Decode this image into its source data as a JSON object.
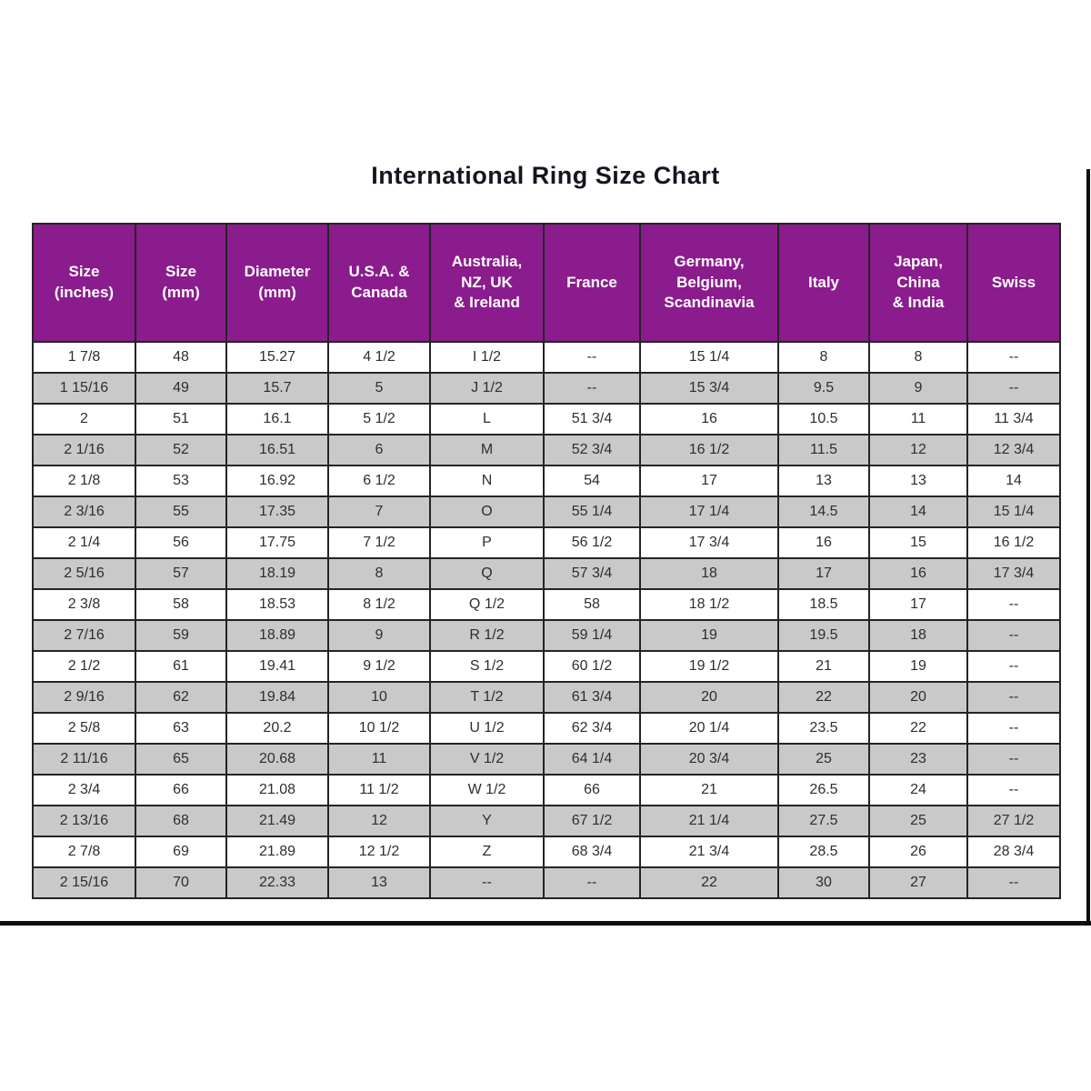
{
  "page": {
    "title": "International Ring Size Chart"
  },
  "colors": {
    "header_bg": "#8b1c8d",
    "header_text": "#ffffff",
    "row_bg": "#ffffff",
    "row_alt_bg": "#c9c9c9",
    "grid_line": "#242424",
    "title_text": "#15151f",
    "frame_rule": "#0e0e0e"
  },
  "table": {
    "columns": [
      "Size\n(inches)",
      "Size\n(mm)",
      "Diameter\n(mm)",
      "U.S.A. &\nCanada",
      "Australia,\nNZ, UK\n& Ireland",
      "France",
      "Germany,\nBelgium,\nScandinavia",
      "Italy",
      "Japan,\nChina\n& India",
      "Swiss"
    ],
    "rows": [
      [
        "1 7/8",
        "48",
        "15.27",
        "4 1/2",
        "I 1/2",
        "--",
        "15 1/4",
        "8",
        "8",
        "--"
      ],
      [
        "1 15/16",
        "49",
        "15.7",
        "5",
        "J 1/2",
        "--",
        "15 3/4",
        "9.5",
        "9",
        "--"
      ],
      [
        "2",
        "51",
        "16.1",
        "5 1/2",
        "L",
        "51 3/4",
        "16",
        "10.5",
        "11",
        "11 3/4"
      ],
      [
        "2 1/16",
        "52",
        "16.51",
        "6",
        "M",
        "52 3/4",
        "16 1/2",
        "11.5",
        "12",
        "12 3/4"
      ],
      [
        "2 1/8",
        "53",
        "16.92",
        "6 1/2",
        "N",
        "54",
        "17",
        "13",
        "13",
        "14"
      ],
      [
        "2 3/16",
        "55",
        "17.35",
        "7",
        "O",
        "55 1/4",
        "17 1/4",
        "14.5",
        "14",
        "15 1/4"
      ],
      [
        "2 1/4",
        "56",
        "17.75",
        "7 1/2",
        "P",
        "56 1/2",
        "17 3/4",
        "16",
        "15",
        "16 1/2"
      ],
      [
        "2 5/16",
        "57",
        "18.19",
        "8",
        "Q",
        "57 3/4",
        "18",
        "17",
        "16",
        "17 3/4"
      ],
      [
        "2 3/8",
        "58",
        "18.53",
        "8 1/2",
        "Q 1/2",
        "58",
        "18 1/2",
        "18.5",
        "17",
        "--"
      ],
      [
        "2 7/16",
        "59",
        "18.89",
        "9",
        "R 1/2",
        "59 1/4",
        "19",
        "19.5",
        "18",
        "--"
      ],
      [
        "2 1/2",
        "61",
        "19.41",
        "9 1/2",
        "S 1/2",
        "60 1/2",
        "19 1/2",
        "21",
        "19",
        "--"
      ],
      [
        "2 9/16",
        "62",
        "19.84",
        "10",
        "T 1/2",
        "61 3/4",
        "20",
        "22",
        "20",
        "--"
      ],
      [
        "2 5/8",
        "63",
        "20.2",
        "10 1/2",
        "U 1/2",
        "62 3/4",
        "20 1/4",
        "23.5",
        "22",
        "--"
      ],
      [
        "2 11/16",
        "65",
        "20.68",
        "11",
        "V 1/2",
        "64 1/4",
        "20 3/4",
        "25",
        "23",
        "--"
      ],
      [
        "2 3/4",
        "66",
        "21.08",
        "11 1/2",
        "W 1/2",
        "66",
        "21",
        "26.5",
        "24",
        "--"
      ],
      [
        "2 13/16",
        "68",
        "21.49",
        "12",
        "Y",
        "67 1/2",
        "21 1/4",
        "27.5",
        "25",
        "27 1/2"
      ],
      [
        "2 7/8",
        "69",
        "21.89",
        "12 1/2",
        "Z",
        "68 3/4",
        "21 3/4",
        "28.5",
        "26",
        "28 3/4"
      ],
      [
        "2 15/16",
        "70",
        "22.33",
        "13",
        "--",
        "--",
        "22",
        "30",
        "27",
        "--"
      ]
    ]
  },
  "chart_data": {
    "type": "table",
    "title": "International Ring Size Chart",
    "columns": [
      "Size (inches)",
      "Size (mm)",
      "Diameter (mm)",
      "U.S.A. & Canada",
      "Australia, NZ, UK & Ireland",
      "France",
      "Germany, Belgium, Scandinavia",
      "Italy",
      "Japan, China & India",
      "Swiss"
    ],
    "rows": [
      [
        "1 7/8",
        "48",
        "15.27",
        "4 1/2",
        "I 1/2",
        "--",
        "15 1/4",
        "8",
        "8",
        "--"
      ],
      [
        "1 15/16",
        "49",
        "15.7",
        "5",
        "J 1/2",
        "--",
        "15 3/4",
        "9.5",
        "9",
        "--"
      ],
      [
        "2",
        "51",
        "16.1",
        "5 1/2",
        "L",
        "51 3/4",
        "16",
        "10.5",
        "11",
        "11 3/4"
      ],
      [
        "2 1/16",
        "52",
        "16.51",
        "6",
        "M",
        "52 3/4",
        "16 1/2",
        "11.5",
        "12",
        "12 3/4"
      ],
      [
        "2 1/8",
        "53",
        "16.92",
        "6 1/2",
        "N",
        "54",
        "17",
        "13",
        "13",
        "14"
      ],
      [
        "2 3/16",
        "55",
        "17.35",
        "7",
        "O",
        "55 1/4",
        "17 1/4",
        "14.5",
        "14",
        "15 1/4"
      ],
      [
        "2 1/4",
        "56",
        "17.75",
        "7 1/2",
        "P",
        "56 1/2",
        "17 3/4",
        "16",
        "15",
        "16 1/2"
      ],
      [
        "2 5/16",
        "57",
        "18.19",
        "8",
        "Q",
        "57 3/4",
        "18",
        "17",
        "16",
        "17 3/4"
      ],
      [
        "2 3/8",
        "58",
        "18.53",
        "8 1/2",
        "Q 1/2",
        "58",
        "18 1/2",
        "18.5",
        "17",
        "--"
      ],
      [
        "2 7/16",
        "59",
        "18.89",
        "9",
        "R 1/2",
        "59 1/4",
        "19",
        "19.5",
        "18",
        "--"
      ],
      [
        "2 1/2",
        "61",
        "19.41",
        "9 1/2",
        "S 1/2",
        "60 1/2",
        "19 1/2",
        "21",
        "19",
        "--"
      ],
      [
        "2 9/16",
        "62",
        "19.84",
        "10",
        "T 1/2",
        "61 3/4",
        "20",
        "22",
        "20",
        "--"
      ],
      [
        "2 5/8",
        "63",
        "20.2",
        "10 1/2",
        "U 1/2",
        "62 3/4",
        "20 1/4",
        "23.5",
        "22",
        "--"
      ],
      [
        "2 11/16",
        "65",
        "20.68",
        "11",
        "V 1/2",
        "64 1/4",
        "20 3/4",
        "25",
        "23",
        "--"
      ],
      [
        "2 3/4",
        "66",
        "21.08",
        "11 1/2",
        "W 1/2",
        "66",
        "21",
        "26.5",
        "24",
        "--"
      ],
      [
        "2 13/16",
        "68",
        "21.49",
        "12",
        "Y",
        "67 1/2",
        "21 1/4",
        "27.5",
        "25",
        "27 1/2"
      ],
      [
        "2 7/8",
        "69",
        "21.89",
        "12 1/2",
        "Z",
        "68 3/4",
        "21 3/4",
        "28.5",
        "26",
        "28 3/4"
      ],
      [
        "2 15/16",
        "70",
        "22.33",
        "13",
        "--",
        "--",
        "22",
        "30",
        "27",
        "--"
      ]
    ],
    "layout": {
      "striped_rows": true,
      "header_background": "#8b1c8d",
      "stripe_background": "#c9c9c9"
    }
  }
}
